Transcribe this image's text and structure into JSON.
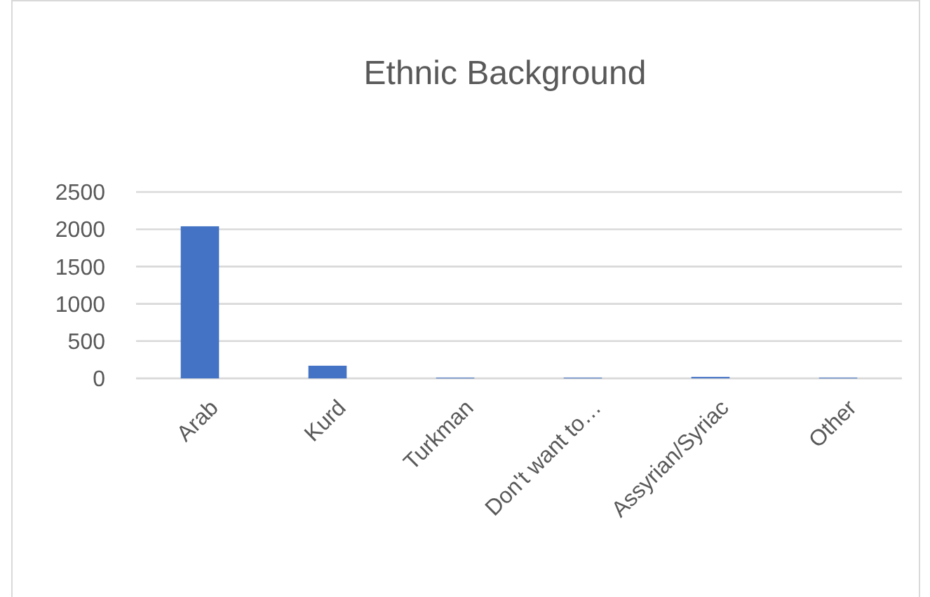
{
  "chart_data": {
    "type": "bar",
    "title": "Ethnic Background",
    "categories": [
      "Arab",
      "Kurd",
      "Turkman",
      "Don't want to…",
      "Assyrian/Syriac",
      "Other"
    ],
    "values": [
      2040,
      170,
      10,
      10,
      20,
      10
    ],
    "color": "#4472c4",
    "ylim": [
      0,
      2500
    ],
    "yticks": [
      0,
      500,
      1000,
      1500,
      2000,
      2500
    ],
    "grid": "y"
  }
}
